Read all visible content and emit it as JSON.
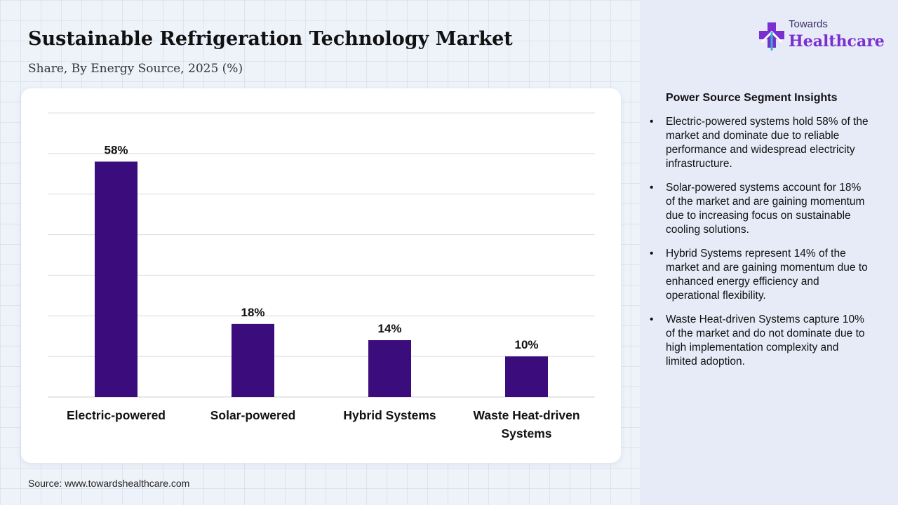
{
  "header": {
    "title": "Sustainable Refrigeration Technology Market",
    "subtitle": "Share, By Energy Source, 2025 (%)"
  },
  "logo": {
    "small_text": "Towards",
    "big_text": "Healthcare"
  },
  "chart_data": {
    "type": "bar",
    "categories": [
      "Electric-powered",
      "Solar-powered",
      "Hybrid Systems",
      "Waste Heat-driven Systems"
    ],
    "values": [
      58,
      18,
      14,
      10
    ],
    "data_labels": [
      "58%",
      "18%",
      "14%",
      "10%"
    ],
    "ylim": [
      0,
      70
    ],
    "grid": true,
    "bar_color": "#3b0d7c"
  },
  "insights": {
    "title": "Power Source Segment Insights",
    "bullet": "•",
    "items": [
      "Electric-powered systems hold 58% of the market and dominate due to reliable performance and widespread electricity infrastructure.",
      "Solar-powered systems account for 18% of the market and are gaining momentum due to increasing focus on sustainable cooling solutions.",
      "Hybrid Systems represent 14% of the market and are gaining momentum due to enhanced energy efficiency and operational flexibility.",
      "Waste Heat-driven Systems capture 10% of the market and do not dominate due to high implementation complexity and limited adoption."
    ]
  },
  "source": "Source: www.towardshealthcare.com",
  "colors": {
    "bar": "#3b0d7c",
    "logo_accent": "#7a2fd0",
    "side_panel": "#e7ebf7"
  }
}
